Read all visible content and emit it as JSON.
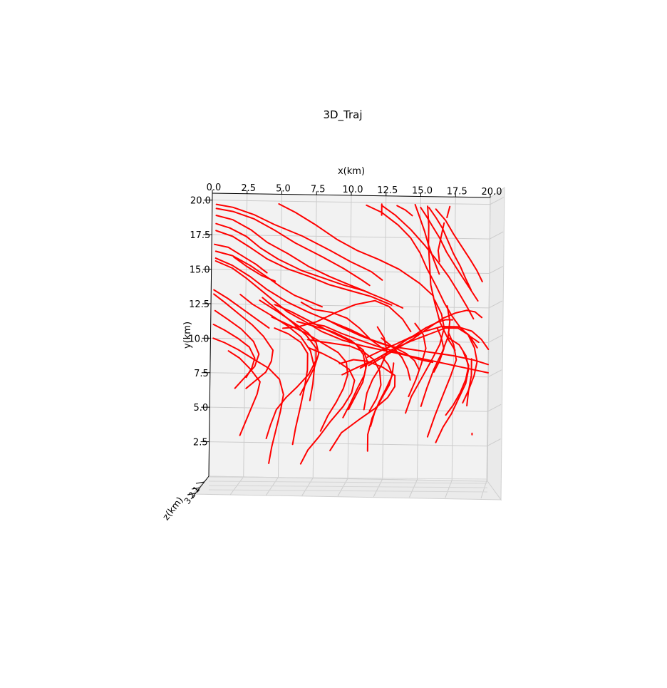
{
  "chart_data": {
    "type": "line",
    "projection": "3d",
    "title": "3D_Traj",
    "xlabel": "x(km)",
    "ylabel": "y(km)",
    "zlabel": "z(km)",
    "xlim": [
      0,
      20
    ],
    "ylim": [
      0,
      20.5
    ],
    "x_ticks": [
      "0.0",
      "2.5",
      "5.0",
      "7.5",
      "10.0",
      "12.5",
      "15.0",
      "17.5",
      "20.0"
    ],
    "y_ticks": [
      "2.5",
      "5.0",
      "7.5",
      "10.0",
      "12.5",
      "15.0",
      "17.5",
      "20.0"
    ],
    "z_ticks": [
      "1",
      "2",
      "3"
    ],
    "grid": true,
    "line_color": "#ff0000",
    "pane_color": "#f2f2f2",
    "series": [
      {
        "x": [
          0.3,
          1.5,
          3.0,
          4.5,
          6.5,
          8.5,
          10.0,
          11.5,
          12.3
        ],
        "y": [
          19.7,
          19.5,
          19.0,
          18.3,
          17.5,
          16.5,
          15.7,
          15.0,
          14.4
        ]
      },
      {
        "x": [
          0.3,
          1.5,
          3.0,
          4.5,
          6.0,
          8.0,
          9.5,
          10.8,
          11.4
        ],
        "y": [
          19.4,
          19.2,
          18.7,
          17.9,
          17.0,
          16.0,
          15.2,
          14.4,
          14.0
        ]
      },
      {
        "x": [
          4.8,
          6.0,
          7.5,
          9.0,
          10.5,
          12.0,
          13.5,
          15.0,
          16.0
        ],
        "y": [
          19.8,
          19.2,
          18.3,
          17.3,
          16.5,
          15.9,
          15.2,
          14.2,
          13.3
        ]
      },
      {
        "x": [
          0.3,
          1.5,
          2.8,
          4.0,
          5.5,
          7.0,
          8.5,
          10.0,
          11.3
        ],
        "y": [
          18.9,
          18.6,
          17.9,
          17.0,
          16.2,
          15.3,
          14.6,
          14.0,
          13.5
        ]
      },
      {
        "x": [
          0.3,
          1.3,
          2.5,
          3.5,
          4.8,
          6.5,
          8.0,
          9.5,
          11.0,
          12.5,
          13.8
        ],
        "y": [
          18.3,
          18.0,
          17.4,
          16.6,
          15.8,
          15.0,
          14.5,
          14.0,
          13.6,
          13.0,
          12.4
        ]
      },
      {
        "x": [
          0.3,
          1.5,
          2.8,
          4.0,
          5.5,
          7.0,
          8.5,
          10.0,
          11.5,
          13.0
        ],
        "y": [
          17.8,
          17.4,
          16.6,
          15.8,
          15.1,
          14.6,
          14.0,
          13.6,
          13.2,
          12.6
        ]
      },
      {
        "x": [
          0.2,
          1.2,
          2.2,
          3.2,
          4.0
        ],
        "y": [
          16.8,
          16.6,
          16.0,
          15.4,
          14.8
        ]
      },
      {
        "x": [
          0.3,
          1.5,
          2.8,
          4.0,
          5.0,
          6.0,
          7.0,
          8.0
        ],
        "y": [
          16.3,
          16.0,
          15.3,
          14.5,
          13.8,
          13.2,
          12.8,
          12.4
        ]
      },
      {
        "x": [
          1.6,
          2.6,
          3.6,
          4.6
        ],
        "y": [
          15.9,
          15.2,
          14.6,
          14.2
        ]
      },
      {
        "x": [
          0.3,
          1.5,
          2.8,
          4.0,
          5.5,
          7.0,
          8.5,
          10.0,
          11.5,
          13.0,
          14.5,
          16.0,
          17.5,
          19.0,
          20.0
        ],
        "y": [
          15.8,
          15.3,
          14.5,
          13.6,
          12.7,
          12.0,
          11.4,
          10.8,
          10.1,
          9.6,
          9.4,
          9.2,
          9.0,
          8.7,
          8.4
        ]
      },
      {
        "x": [
          0.3,
          1.5,
          2.5,
          3.5,
          4.5,
          5.5,
          6.8,
          8.0,
          9.5,
          11.0,
          12.5,
          14.0,
          15.5,
          17.0,
          18.5,
          20.0
        ],
        "y": [
          15.6,
          15.1,
          14.4,
          13.6,
          12.8,
          12.0,
          11.3,
          10.6,
          10.0,
          9.6,
          9.3,
          9.0,
          8.7,
          8.4,
          8.1,
          7.8
        ]
      },
      {
        "x": [
          0.2,
          1.2,
          2.2,
          3.2,
          4.2
        ],
        "y": [
          13.5,
          12.9,
          12.2,
          11.5,
          10.8
        ]
      },
      {
        "x": [
          0.2,
          1.0,
          2.0,
          3.0,
          3.8,
          4.5,
          4.4,
          4.0,
          3.3,
          2.6
        ],
        "y": [
          13.2,
          12.6,
          11.8,
          11.0,
          10.2,
          9.2,
          8.4,
          7.6,
          7.0,
          6.4
        ]
      },
      {
        "x": [
          0.3,
          1.2,
          2.2,
          3.1,
          3.5,
          3.2,
          2.5,
          1.8
        ],
        "y": [
          12.0,
          11.4,
          10.7,
          9.8,
          8.9,
          8.0,
          7.2,
          6.4
        ]
      },
      {
        "x": [
          0.2,
          1.0,
          2.0,
          2.8,
          3.2,
          3.0,
          2.6
        ],
        "y": [
          11.0,
          10.6,
          10.0,
          9.4,
          8.6,
          7.9,
          7.2
        ]
      },
      {
        "x": [
          0.2,
          1.0,
          2.0,
          3.0,
          4.2,
          5.0,
          5.3,
          5.1,
          4.8,
          4.5,
          4.3
        ],
        "y": [
          10.0,
          9.7,
          9.2,
          8.6,
          7.9,
          7.1,
          6.0,
          4.8,
          3.5,
          2.2,
          1.0
        ]
      },
      {
        "x": [
          1.3,
          2.1,
          2.9,
          3.6,
          3.4,
          3.0,
          2.6,
          2.2
        ],
        "y": [
          9.1,
          8.6,
          7.8,
          6.9,
          6.0,
          5.0,
          4.0,
          3.0
        ]
      },
      {
        "x": [
          2.1,
          3.0,
          4.2,
          5.5,
          6.5,
          7.2,
          7.5,
          7.4,
          7.2
        ],
        "y": [
          13.2,
          12.5,
          11.8,
          11.0,
          10.2,
          9.2,
          8.0,
          6.8,
          5.6
        ]
      },
      {
        "x": [
          3.5,
          4.8,
          6.0,
          7.0,
          7.6,
          7.8,
          7.5,
          7.0,
          6.5
        ],
        "y": [
          12.8,
          12.0,
          11.2,
          10.5,
          9.8,
          9.0,
          8.0,
          7.0,
          6.0
        ]
      },
      {
        "x": [
          4.6,
          5.8,
          7.0,
          8.2,
          9.5,
          10.5,
          11.0,
          11.2,
          11.0,
          10.5,
          10.0
        ],
        "y": [
          12.5,
          12.0,
          11.4,
          10.8,
          10.2,
          9.7,
          9.0,
          8.0,
          7.0,
          6.0,
          5.0
        ]
      },
      {
        "x": [
          4.4,
          5.5,
          6.8,
          8.0,
          9.2,
          9.8,
          9.9,
          9.6,
          9.1,
          8.5,
          8.0
        ],
        "y": [
          11.6,
          11.1,
          10.5,
          9.8,
          9.1,
          8.4,
          7.5,
          6.5,
          5.5,
          4.5,
          3.4
        ]
      },
      {
        "x": [
          4.6,
          5.6,
          6.5,
          7.0,
          7.0,
          6.8,
          6.5,
          6.2,
          6.0
        ],
        "y": [
          10.8,
          10.4,
          9.8,
          9.0,
          7.8,
          6.5,
          5.0,
          3.6,
          2.4
        ]
      },
      {
        "x": [
          3.7,
          4.8,
          5.9,
          6.9,
          7.6,
          7.6,
          7.1,
          6.3,
          5.5,
          4.8,
          4.4,
          4.1
        ],
        "y": [
          13.0,
          12.1,
          11.2,
          10.3,
          9.4,
          8.5,
          7.5,
          6.6,
          5.8,
          4.9,
          3.8,
          2.8
        ]
      },
      {
        "x": [
          6.2,
          7.4,
          8.8,
          10.1,
          11.0,
          11.3,
          11.1,
          10.6,
          10.1,
          9.6
        ],
        "y": [
          11.3,
          11.0,
          10.6,
          10.0,
          9.3,
          8.5,
          7.5,
          6.5,
          5.4,
          4.4
        ]
      },
      {
        "x": [
          6.5,
          7.4,
          8.7,
          9.8,
          10.7,
          11.5,
          12.6
        ],
        "y": [
          12.7,
          12.2,
          12.0,
          11.6,
          10.9,
          10.1,
          9.3
        ]
      },
      {
        "x": [
          8.1,
          9.3,
          10.9,
          12.3,
          13.3,
          14.1,
          14.7,
          15.0
        ],
        "y": [
          11.6,
          11.0,
          10.3,
          9.8,
          9.5,
          9.1,
          8.6,
          8.0
        ]
      },
      {
        "x": [
          7.0,
          8.5,
          10.0,
          11.0,
          11.8,
          12.2,
          12.3,
          12.0,
          11.5
        ],
        "y": [
          10.0,
          9.8,
          9.6,
          9.2,
          8.6,
          7.8,
          6.8,
          5.8,
          4.9
        ]
      },
      {
        "x": [
          7.1,
          8.1,
          9.1,
          10.0,
          10.4,
          10.2,
          9.6,
          8.7,
          7.9,
          7.1,
          6.6
        ],
        "y": [
          9.4,
          9.0,
          8.5,
          7.9,
          7.1,
          6.2,
          5.2,
          4.1,
          3.0,
          2.0,
          1.0
        ]
      },
      {
        "x": [
          5.2,
          6.2,
          7.6,
          9.0,
          10.4,
          11.8,
          12.8,
          13.8,
          14.4
        ],
        "y": [
          10.8,
          10.9,
          11.3,
          12.0,
          12.6,
          12.9,
          12.5,
          11.6,
          10.7
        ]
      },
      {
        "x": [
          7.1,
          8.2,
          9.4,
          10.8,
          12.0,
          13.1,
          14.1,
          15.0,
          16.0
        ],
        "y": [
          11.2,
          11.0,
          10.5,
          10.0,
          9.6,
          9.3,
          9.0,
          8.7,
          8.5
        ]
      },
      {
        "x": [
          9.3,
          10.3,
          11.3,
          12.4,
          13.3,
          13.3,
          12.8,
          11.9,
          10.8,
          9.5,
          8.7
        ],
        "y": [
          8.3,
          8.6,
          8.5,
          8.1,
          7.5,
          6.7,
          5.9,
          5.1,
          4.3,
          3.3,
          2.0
        ]
      },
      {
        "x": [
          11.3,
          12.3,
          13.4,
          14.6,
          15.5,
          16.3,
          16.9,
          17.4
        ],
        "y": [
          8.8,
          9.3,
          9.8,
          10.4,
          11.0,
          11.4,
          11.6,
          11.6
        ]
      },
      {
        "x": [
          11.4,
          12.4,
          13.5,
          14.6,
          15.7,
          16.7,
          17.6,
          18.4,
          19.0,
          19.5
        ],
        "y": [
          8.2,
          8.8,
          9.5,
          10.2,
          11.0,
          11.7,
          12.1,
          12.3,
          12.2,
          11.8
        ]
      },
      {
        "x": [
          10.8,
          11.8,
          13.0,
          14.1,
          15.3,
          16.6,
          17.8,
          18.8,
          19.5,
          20.0
        ],
        "y": [
          8.0,
          8.6,
          9.3,
          10.1,
          10.7,
          11.1,
          11.1,
          10.8,
          10.2,
          9.5
        ]
      },
      {
        "x": [
          9.5,
          10.7,
          12.0,
          13.1,
          14.4,
          15.9,
          16.9,
          17.8,
          18.6,
          19.2
        ],
        "y": [
          7.5,
          8.1,
          8.7,
          9.4,
          10.0,
          10.6,
          11.0,
          11.0,
          10.5,
          9.6
        ]
      },
      {
        "x": [
          12.0,
          12.5,
          12.7,
          12.3,
          11.7,
          11.3,
          11.1
        ],
        "y": [
          11.0,
          10.2,
          9.2,
          8.2,
          7.2,
          6.2,
          5.0
        ]
      },
      {
        "x": [
          12.3,
          12.8,
          13.1,
          12.9,
          12.4,
          11.9,
          11.6
        ],
        "y": [
          8.9,
          8.3,
          7.6,
          6.8,
          5.9,
          4.9,
          3.8
        ]
      },
      {
        "x": [
          13.2,
          13.1,
          12.7,
          12.2,
          11.7,
          11.4,
          11.4
        ],
        "y": [
          8.4,
          7.5,
          6.6,
          5.6,
          4.4,
          3.2,
          2.0
        ]
      },
      {
        "x": [
          12.3,
          13.2,
          13.8,
          14.2,
          14.4
        ],
        "y": [
          10.2,
          9.5,
          8.8,
          8.0,
          7.2
        ]
      },
      {
        "x": [
          14.7,
          15.3,
          15.5,
          15.2,
          14.8,
          14.3
        ],
        "y": [
          11.3,
          10.5,
          9.5,
          8.4,
          7.2,
          6.0
        ]
      },
      {
        "x": [
          16.1,
          16.6,
          16.8,
          16.5,
          15.9,
          15.2,
          14.5,
          14.1
        ],
        "y": [
          13.0,
          12.0,
          11.0,
          9.8,
          8.6,
          7.3,
          6.0,
          4.8
        ]
      },
      {
        "x": [
          17.0,
          17.2,
          17.1,
          16.7,
          16.1,
          15.6,
          15.2
        ],
        "y": [
          12.6,
          11.5,
          10.4,
          9.3,
          8.0,
          6.6,
          5.3
        ]
      },
      {
        "x": [
          16.3,
          16.6,
          16.8,
          16.5,
          16.1
        ],
        "y": [
          11.0,
          10.3,
          9.5,
          8.6,
          7.8
        ]
      },
      {
        "x": [
          17.1,
          17.9,
          18.4,
          18.6,
          18.4,
          17.9,
          17.4,
          16.8,
          16.3
        ],
        "y": [
          10.3,
          9.8,
          9.0,
          8.1,
          7.0,
          5.9,
          4.8,
          3.8,
          2.7
        ]
      },
      {
        "x": [
          18.2,
          18.6,
          18.4,
          18.0,
          17.5,
          17.0
        ],
        "y": [
          9.3,
          8.3,
          7.3,
          6.3,
          5.4,
          4.7
        ]
      },
      {
        "x": [
          17.1,
          17.5,
          17.7,
          17.3,
          16.8,
          16.2,
          15.7
        ],
        "y": [
          10.7,
          9.8,
          8.7,
          7.5,
          6.2,
          4.6,
          3.1
        ]
      },
      {
        "x": [
          18.5,
          19.0,
          19.2,
          19.0,
          18.6,
          18.2
        ],
        "y": [
          10.6,
          9.6,
          8.6,
          7.6,
          6.5,
          5.6
        ]
      },
      {
        "x": [
          18.8,
          18.8,
          18.6,
          18.5
        ],
        "y": [
          8.8,
          7.6,
          6.4,
          5.4
        ]
      },
      {
        "x": [
          11.1,
          12.2,
          13.4,
          14.3,
          15.0,
          15.5,
          16.2,
          16.8,
          17.4,
          18.0,
          18.7,
          19.3
        ],
        "y": [
          19.8,
          19.3,
          18.4,
          17.5,
          16.4,
          15.3,
          14.0,
          12.8,
          11.8,
          11.0,
          10.4,
          10.0
        ]
      },
      {
        "x": [
          15.5,
          15.6,
          15.6,
          15.7,
          15.8,
          16.1,
          16.5,
          17.1,
          17.6
        ],
        "y": [
          19.8,
          18.4,
          17.0,
          15.5,
          14.1,
          12.8,
          11.4,
          10.2,
          9.4
        ]
      },
      {
        "x": [
          15.6,
          16.1,
          16.6,
          17.0,
          17.4,
          17.9,
          18.3,
          18.7
        ],
        "y": [
          19.7,
          19.0,
          18.2,
          17.3,
          16.4,
          15.5,
          14.6,
          13.8
        ]
      },
      {
        "x": [
          15.0,
          15.4,
          15.9,
          16.4,
          16.9,
          17.6,
          18.4,
          19.2
        ],
        "y": [
          19.7,
          19.1,
          18.3,
          17.5,
          16.5,
          15.4,
          14.2,
          13.0
        ]
      },
      {
        "x": [
          16.1,
          16.8,
          17.4,
          18.0,
          18.6,
          19.1,
          19.5
        ],
        "y": [
          19.6,
          18.8,
          17.8,
          16.9,
          16.0,
          15.2,
          14.4
        ]
      },
      {
        "x": [
          16.7,
          16.5,
          16.3,
          16.4
        ],
        "y": [
          18.6,
          17.6,
          16.6,
          15.8
        ]
      },
      {
        "x": [
          14.6,
          14.9,
          15.3,
          15.6,
          16.0,
          16.4
        ],
        "y": [
          19.9,
          19.1,
          18.0,
          17.0,
          15.9,
          14.9
        ]
      },
      {
        "x": [
          12.2,
          12.2
        ],
        "y": [
          19.9,
          19.1
        ]
      },
      {
        "x": [
          12.2,
          13.2,
          14.3,
          15.3,
          16.2,
          17.1,
          17.8,
          18.4,
          18.9
        ],
        "y": [
          19.8,
          19.1,
          18.1,
          17.0,
          15.9,
          14.7,
          13.6,
          12.6,
          11.7
        ]
      },
      {
        "x": [
          13.3,
          13.9,
          14.4
        ],
        "y": [
          19.8,
          19.5,
          19.1
        ]
      },
      {
        "x": [
          17.1,
          17.0,
          16.9
        ],
        "y": [
          19.8,
          19.4,
          19.0
        ]
      },
      {
        "x": [
          18.9,
          18.9
        ],
        "y": [
          3.4,
          3.3
        ]
      }
    ]
  }
}
